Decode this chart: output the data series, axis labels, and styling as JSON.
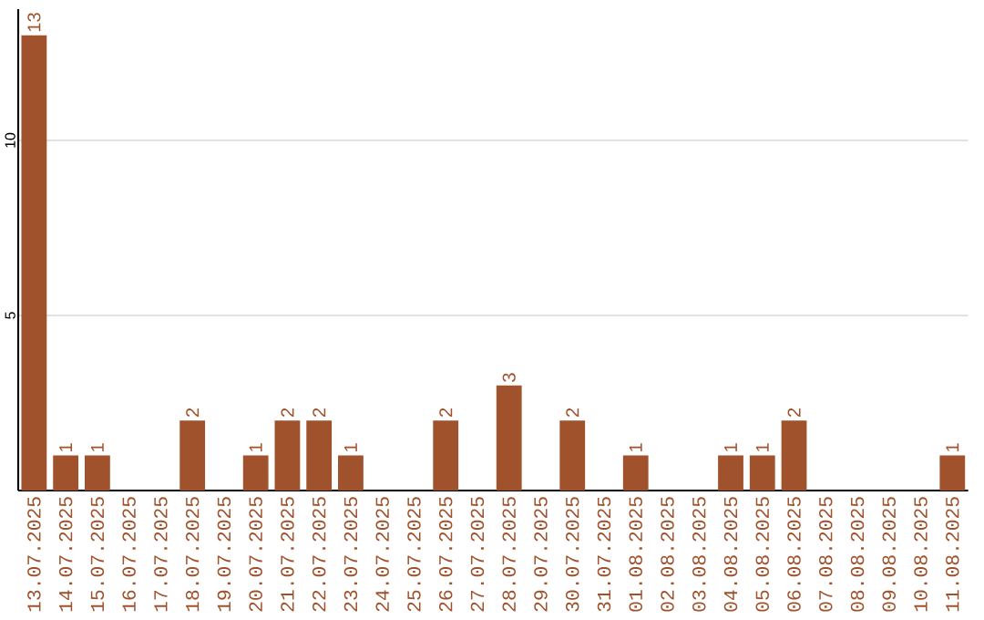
{
  "chart_data": {
    "type": "bar",
    "categories": [
      "13.07.2025",
      "14.07.2025",
      "15.07.2025",
      "16.07.2025",
      "17.07.2025",
      "18.07.2025",
      "19.07.2025",
      "20.07.2025",
      "21.07.2025",
      "22.07.2025",
      "23.07.2025",
      "24.07.2025",
      "25.07.2025",
      "26.07.2025",
      "27.07.2025",
      "28.07.2025",
      "29.07.2025",
      "30.07.2025",
      "31.07.2025",
      "01.08.2025",
      "02.08.2025",
      "03.08.2025",
      "04.08.2025",
      "05.08.2025",
      "06.08.2025",
      "07.08.2025",
      "08.08.2025",
      "09.08.2025",
      "10.08.2025",
      "11.08.2025"
    ],
    "values": [
      13,
      1,
      1,
      0,
      0,
      2,
      0,
      1,
      2,
      2,
      1,
      0,
      0,
      2,
      0,
      3,
      0,
      2,
      0,
      1,
      0,
      0,
      1,
      1,
      2,
      0,
      0,
      0,
      0,
      1
    ],
    "value_labels": [
      "13",
      "1",
      "1",
      null,
      null,
      "2",
      null,
      "1",
      "2",
      "2",
      "1",
      null,
      null,
      "2",
      null,
      "3",
      null,
      "2",
      null,
      "1",
      null,
      null,
      "1",
      "1",
      "2",
      null,
      null,
      null,
      null,
      "1"
    ],
    "color": "#a0522d",
    "ylim": [
      0,
      13.75
    ],
    "yticks": [
      5,
      10
    ],
    "grid": "y"
  }
}
